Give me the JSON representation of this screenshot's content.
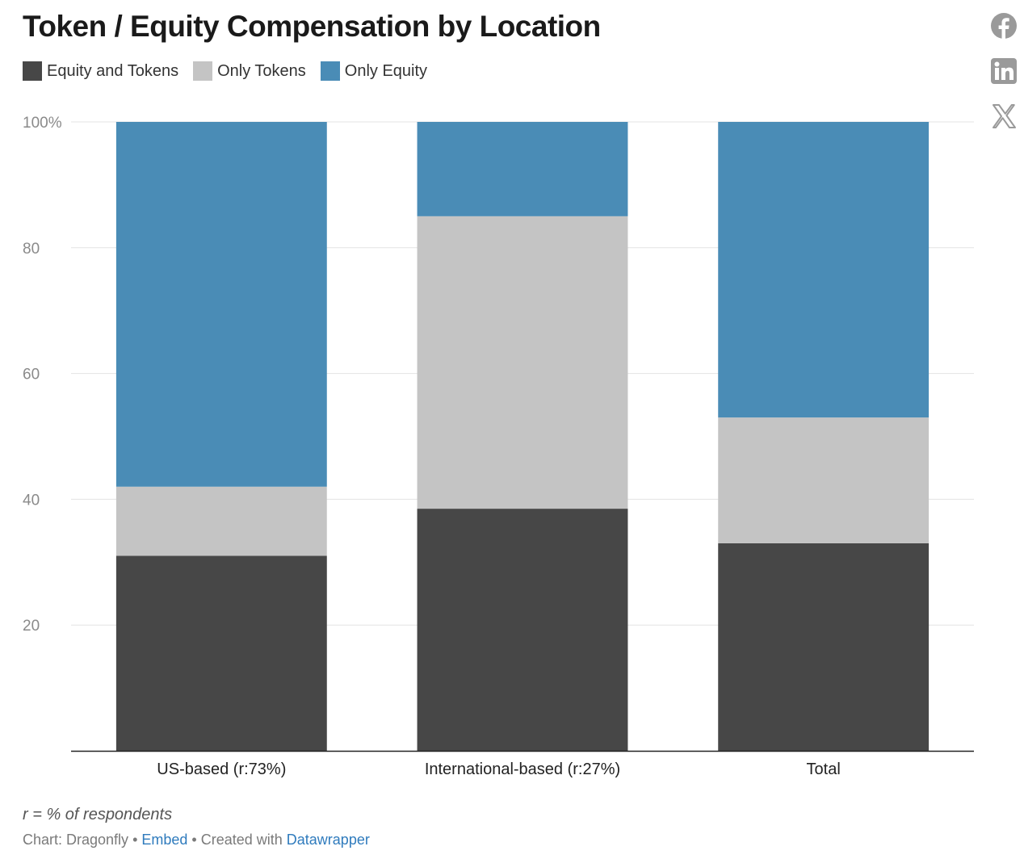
{
  "header": {
    "title": "Token / Equity Compensation by Location"
  },
  "legend": [
    {
      "label": "Equity and Tokens",
      "color": "#474747"
    },
    {
      "label": "Only Tokens",
      "color": "#c4c4c4"
    },
    {
      "label": "Only Equity",
      "color": "#4a8cb6"
    }
  ],
  "share": [
    {
      "icon": "facebook-icon"
    },
    {
      "icon": "linkedin-icon"
    },
    {
      "icon": "x-icon"
    }
  ],
  "chart_data": {
    "type": "bar",
    "stacked": true,
    "title": "Token / Equity Compensation by Location",
    "categories": [
      "US-based (r:73%)",
      "International-based (r:27%)",
      "Total"
    ],
    "series": [
      {
        "name": "Equity and Tokens",
        "color": "#474747",
        "values": [
          31,
          38.5,
          33
        ]
      },
      {
        "name": "Only Tokens",
        "color": "#c4c4c4",
        "values": [
          11,
          46.5,
          20
        ]
      },
      {
        "name": "Only Equity",
        "color": "#4a8cb6",
        "values": [
          58,
          15,
          47
        ]
      }
    ],
    "ylim": [
      0,
      100
    ],
    "yticks": [
      {
        "value": 20,
        "label": "20"
      },
      {
        "value": 40,
        "label": "40"
      },
      {
        "value": 60,
        "label": "60"
      },
      {
        "value": 80,
        "label": "80"
      },
      {
        "value": 100,
        "label": "100%"
      }
    ],
    "grid": true
  },
  "note": "r = % of respondents",
  "footer": {
    "prefix": "Chart: Dragonfly",
    "sep1": " • ",
    "embed": "Embed",
    "sep2": " • Created with ",
    "datawrapper": "Datawrapper"
  }
}
